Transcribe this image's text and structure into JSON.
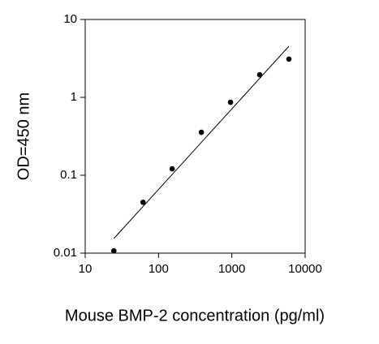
{
  "chart_data": {
    "type": "scatter",
    "xlabel": "Mouse BMP-2 concentration (pg/ml)",
    "ylabel": "OD=450 nm",
    "x": [
      24.576,
      61.44,
      153.6,
      384,
      960,
      2400,
      6000
    ],
    "series": [
      {
        "color": "#000000",
        "values": [
          0.0107,
          0.045,
          0.121,
          0.356,
          0.866,
          1.95,
          3.1
        ]
      }
    ],
    "fit": {
      "color": "#000000",
      "x": [
        24.576,
        6000
      ],
      "y": [
        0.0154,
        4.53
      ]
    },
    "xscale": "log",
    "yscale": "log",
    "xlim": [
      10,
      10000
    ],
    "ylim": [
      0.01,
      10
    ],
    "xticks": [
      10,
      100,
      1000,
      10000
    ],
    "yticks": [
      0.01,
      0.1,
      1,
      10
    ],
    "grid": false
  }
}
